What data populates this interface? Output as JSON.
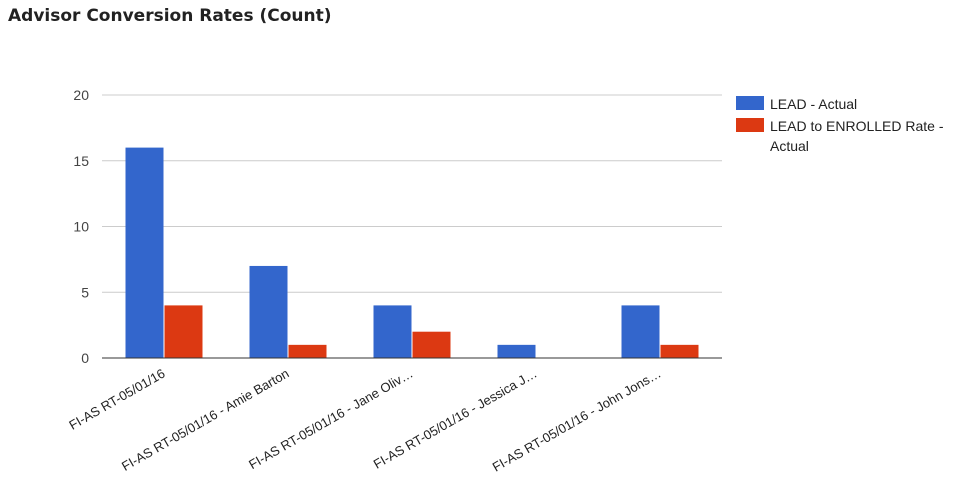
{
  "chart_data": {
    "type": "bar",
    "title": "Advisor Conversion Rates (Count)",
    "categories": [
      "FI-AS RT-05/01/16",
      "FI-AS RT-05/01/16 - Amie Barton",
      "FI-AS RT-05/01/16 - Jane Oliv…",
      "FI-AS RT-05/01/16 - Jessica J…",
      "FI-AS RT-05/01/16 - John Jons…"
    ],
    "series": [
      {
        "name": "LEAD - Actual",
        "color": "#3366cc",
        "values": [
          16,
          7,
          4,
          1,
          4
        ]
      },
      {
        "name": "LEAD to ENROLLED Rate - Actual",
        "color": "#dc3912",
        "values": [
          4,
          1,
          2,
          0,
          1
        ]
      }
    ],
    "ylim": [
      0,
      20
    ],
    "yticks": [
      0,
      5,
      10,
      15,
      20
    ],
    "grid": true,
    "legend_position": "right"
  }
}
